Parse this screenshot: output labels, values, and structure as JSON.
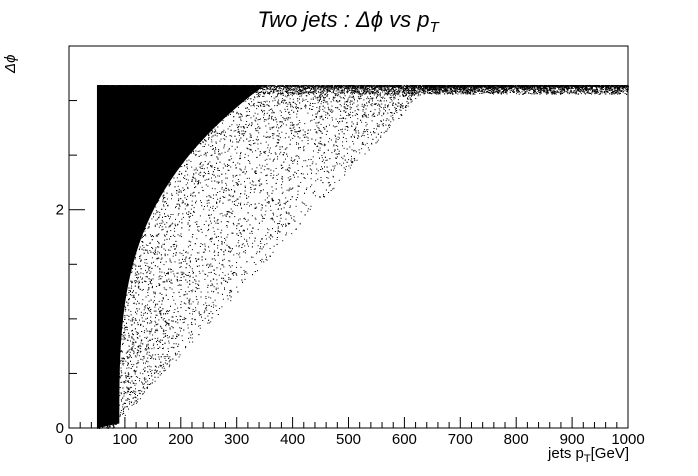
{
  "chart_data": {
    "type": "scatter",
    "title": "Two   jets :   Δϕ   vs   p_T",
    "title_parts": {
      "main": "Two   jets :   Δϕ   vs   p",
      "sub": "T"
    },
    "xlabel": "jets p_T[GeV]",
    "xlabel_parts": {
      "pre": "jets p",
      "sub": "T",
      "post": "[GeV]"
    },
    "ylabel": "Δϕ",
    "xlim": [
      0,
      1000
    ],
    "ylim": [
      0,
      3.5
    ],
    "x_ticks": [
      "0",
      "100",
      "200",
      "300",
      "400",
      "500",
      "600",
      "700",
      "800",
      "900",
      "1000"
    ],
    "y_ticks": [
      "0",
      "2"
    ],
    "grid": false,
    "legend": "none",
    "marker_color": "#000000",
    "distribution": {
      "x_min": 50,
      "x_max": 1000,
      "y_min": 0,
      "y_max": 3.14159,
      "description": "dense near x=50, spreading toward y=pi at high x"
    }
  }
}
